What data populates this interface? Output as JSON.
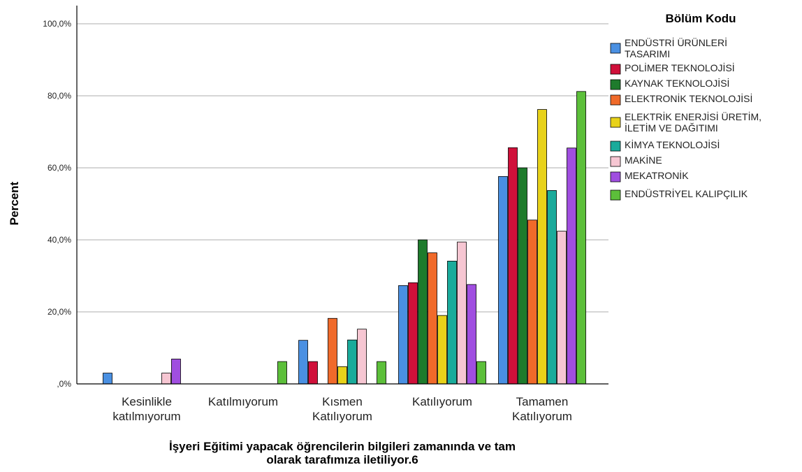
{
  "chart_data": {
    "type": "bar",
    "title": "",
    "ylabel": "Percent",
    "xlabel_lines": [
      "İşyeri Eğitimi yapacak öğrencilerin bilgileri zamanında ve tam",
      "olarak tarafımıza iletiliyor.6"
    ],
    "ylim": [
      0,
      100
    ],
    "y_ticks": [
      {
        "value": 0,
        "label": ",0%"
      },
      {
        "value": 20,
        "label": "20,0%"
      },
      {
        "value": 40,
        "label": "40,0%"
      },
      {
        "value": 60,
        "label": "60,0%"
      },
      {
        "value": 80,
        "label": "80,0%"
      },
      {
        "value": 100,
        "label": "100,0%"
      }
    ],
    "grid": true,
    "legend_title": "Bölüm Kodu",
    "legend_position": "right",
    "categories": [
      {
        "lines": [
          "Kesinlikle",
          "katılmıyorum"
        ]
      },
      {
        "lines": [
          "Katılmıyorum"
        ]
      },
      {
        "lines": [
          "Kısmen",
          "Katılıyorum"
        ]
      },
      {
        "lines": [
          "Katılıyorum"
        ]
      },
      {
        "lines": [
          "Tamamen",
          "Katılıyorum"
        ]
      }
    ],
    "series": [
      {
        "name_lines": [
          "ENDÜSTRİ ÜRÜNLERİ",
          "TASARIMI"
        ],
        "color": "#4a90e2",
        "values": [
          3.0,
          0,
          12.1,
          27.3,
          57.6
        ]
      },
      {
        "name_lines": [
          "POLİMER TEKNOLOJİSİ"
        ],
        "color": "#d0103a",
        "values": [
          0,
          0,
          6.2,
          28.1,
          65.6
        ]
      },
      {
        "name_lines": [
          "KAYNAK TEKNOLOJİSİ"
        ],
        "color": "#1e7b2c",
        "values": [
          0,
          0,
          0,
          40.0,
          60.0
        ]
      },
      {
        "name_lines": [
          "ELEKTRONİK TEKNOLOJİSİ"
        ],
        "color": "#f06a2a",
        "values": [
          0,
          0,
          18.2,
          36.4,
          45.5
        ]
      },
      {
        "name_lines": [
          "ELEKTRİK ENERJİSİ ÜRETİM,",
          "İLETİM VE DAĞITIMI"
        ],
        "color": "#e8d21a",
        "values": [
          0,
          0,
          4.8,
          19.0,
          76.2
        ]
      },
      {
        "name_lines": [
          "KİMYA TEKNOLOJİSİ"
        ],
        "color": "#1aab9b",
        "values": [
          0,
          0,
          12.2,
          34.1,
          53.7
        ]
      },
      {
        "name_lines": [
          "MAKİNE"
        ],
        "color": "#f6c6d2",
        "values": [
          3.0,
          0,
          15.2,
          39.4,
          42.4
        ]
      },
      {
        "name_lines": [
          "MEKATRONİK"
        ],
        "color": "#a04ee0",
        "values": [
          6.9,
          0,
          0,
          27.6,
          65.5
        ]
      },
      {
        "name_lines": [
          "ENDÜSTRİYEL KALIPÇILIK"
        ],
        "color": "#5cbf3a",
        "values": [
          0,
          6.2,
          6.2,
          6.2,
          81.2
        ]
      }
    ]
  }
}
